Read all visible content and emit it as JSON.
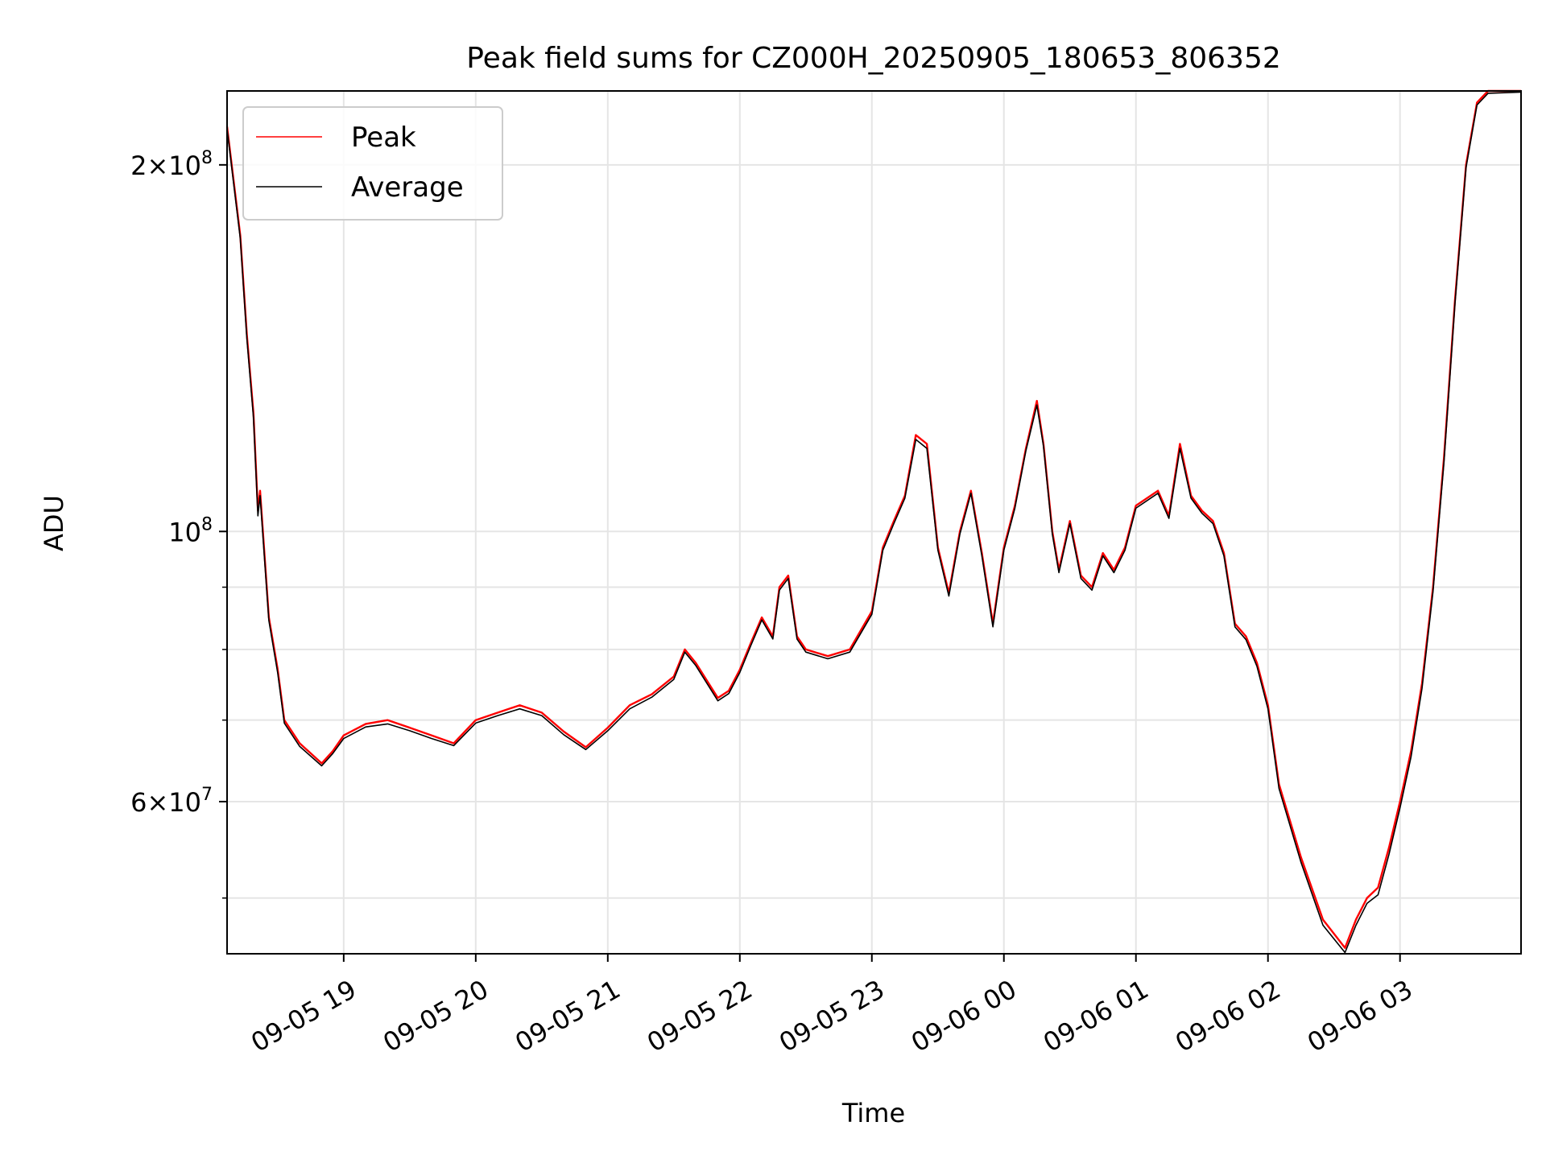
{
  "chart_data": {
    "type": "line",
    "title": "Peak field sums for CZ000H_20250905_180653_806352",
    "xlabel": "Time",
    "ylabel": "ADU",
    "yscale": "log",
    "ylim": [
      45000000,
      230000000
    ],
    "xlim": [
      "2025-09-05 18:07",
      "2025-09-06 03:55"
    ],
    "grid": true,
    "legend_position": "top-left",
    "x_ticks": [
      {
        "t": "2025-09-05 19:00",
        "label": "09-05 19"
      },
      {
        "t": "2025-09-05 20:00",
        "label": "09-05 20"
      },
      {
        "t": "2025-09-05 21:00",
        "label": "09-05 21"
      },
      {
        "t": "2025-09-05 22:00",
        "label": "09-05 22"
      },
      {
        "t": "2025-09-05 23:00",
        "label": "09-05 23"
      },
      {
        "t": "2025-09-06 00:00",
        "label": "09-06 00"
      },
      {
        "t": "2025-09-06 01:00",
        "label": "09-06 01"
      },
      {
        "t": "2025-09-06 02:00",
        "label": "09-06 02"
      },
      {
        "t": "2025-09-06 03:00",
        "label": "09-06 03"
      }
    ],
    "y_ticks_major": [
      {
        "value": 60000000,
        "label_base": "6×10",
        "label_exp": "7"
      },
      {
        "value": 100000000,
        "label_base": "10",
        "label_exp": "8"
      },
      {
        "value": 200000000,
        "label_base": "2×10",
        "label_exp": "8"
      }
    ],
    "y_ticks_minor": [
      50000000,
      70000000,
      80000000,
      90000000
    ],
    "series": [
      {
        "name": "Peak",
        "color": "#ff0000",
        "points": [
          [
            "2025-09-05 18:07",
            215000000
          ],
          [
            "2025-09-05 18:13",
            175000000
          ],
          [
            "2025-09-05 18:16",
            145000000
          ],
          [
            "2025-09-05 18:19",
            125000000
          ],
          [
            "2025-09-05 18:21",
            104000000
          ],
          [
            "2025-09-05 18:22",
            108000000
          ],
          [
            "2025-09-05 18:26",
            85000000
          ],
          [
            "2025-09-05 18:30",
            77000000
          ],
          [
            "2025-09-05 18:33",
            70000000
          ],
          [
            "2025-09-05 18:40",
            67000000
          ],
          [
            "2025-09-05 18:50",
            64500000
          ],
          [
            "2025-09-05 18:55",
            66000000
          ],
          [
            "2025-09-05 19:00",
            68000000
          ],
          [
            "2025-09-05 19:10",
            69500000
          ],
          [
            "2025-09-05 19:20",
            70000000
          ],
          [
            "2025-09-05 19:30",
            69000000
          ],
          [
            "2025-09-05 19:40",
            68000000
          ],
          [
            "2025-09-05 19:50",
            67000000
          ],
          [
            "2025-09-05 20:00",
            70000000
          ],
          [
            "2025-09-05 20:10",
            71000000
          ],
          [
            "2025-09-05 20:20",
            72000000
          ],
          [
            "2025-09-05 20:30",
            71000000
          ],
          [
            "2025-09-05 20:40",
            68500000
          ],
          [
            "2025-09-05 20:50",
            66500000
          ],
          [
            "2025-09-05 21:00",
            69000000
          ],
          [
            "2025-09-05 21:10",
            72000000
          ],
          [
            "2025-09-05 21:20",
            73500000
          ],
          [
            "2025-09-05 21:30",
            76000000
          ],
          [
            "2025-09-05 21:35",
            80000000
          ],
          [
            "2025-09-05 21:40",
            78000000
          ],
          [
            "2025-09-05 21:50",
            73000000
          ],
          [
            "2025-09-05 21:55",
            74000000
          ],
          [
            "2025-09-05 22:00",
            77000000
          ],
          [
            "2025-09-05 22:05",
            81000000
          ],
          [
            "2025-09-05 22:10",
            85000000
          ],
          [
            "2025-09-05 22:15",
            82000000
          ],
          [
            "2025-09-05 22:18",
            90000000
          ],
          [
            "2025-09-05 22:22",
            92000000
          ],
          [
            "2025-09-05 22:26",
            82000000
          ],
          [
            "2025-09-05 22:30",
            80000000
          ],
          [
            "2025-09-05 22:40",
            79000000
          ],
          [
            "2025-09-05 22:50",
            80000000
          ],
          [
            "2025-09-05 23:00",
            86000000
          ],
          [
            "2025-09-05 23:05",
            97000000
          ],
          [
            "2025-09-05 23:10",
            102000000
          ],
          [
            "2025-09-05 23:15",
            107000000
          ],
          [
            "2025-09-05 23:20",
            120000000
          ],
          [
            "2025-09-05 23:25",
            118000000
          ],
          [
            "2025-09-05 23:30",
            97000000
          ],
          [
            "2025-09-05 23:35",
            89000000
          ],
          [
            "2025-09-05 23:40",
            100000000
          ],
          [
            "2025-09-05 23:45",
            108000000
          ],
          [
            "2025-09-05 23:50",
            96000000
          ],
          [
            "2025-09-05 23:55",
            84000000
          ],
          [
            "2025-09-06 00:00",
            97000000
          ],
          [
            "2025-09-06 00:05",
            105000000
          ],
          [
            "2025-09-06 00:10",
            117000000
          ],
          [
            "2025-09-06 00:15",
            128000000
          ],
          [
            "2025-09-06 00:18",
            118000000
          ],
          [
            "2025-09-06 00:22",
            100000000
          ],
          [
            "2025-09-06 00:25",
            93000000
          ],
          [
            "2025-09-06 00:30",
            102000000
          ],
          [
            "2025-09-06 00:35",
            92000000
          ],
          [
            "2025-09-06 00:40",
            90000000
          ],
          [
            "2025-09-06 00:45",
            96000000
          ],
          [
            "2025-09-06 00:50",
            93000000
          ],
          [
            "2025-09-06 00:55",
            97000000
          ],
          [
            "2025-09-06 01:00",
            105000000
          ],
          [
            "2025-09-06 01:10",
            108000000
          ],
          [
            "2025-09-06 01:15",
            103000000
          ],
          [
            "2025-09-06 01:20",
            118000000
          ],
          [
            "2025-09-06 01:25",
            107000000
          ],
          [
            "2025-09-06 01:30",
            104000000
          ],
          [
            "2025-09-06 01:35",
            102000000
          ],
          [
            "2025-09-06 01:40",
            96000000
          ],
          [
            "2025-09-06 01:45",
            84000000
          ],
          [
            "2025-09-06 01:50",
            82000000
          ],
          [
            "2025-09-06 01:55",
            78000000
          ],
          [
            "2025-09-06 02:00",
            72000000
          ],
          [
            "2025-09-06 02:05",
            62000000
          ],
          [
            "2025-09-06 02:15",
            54000000
          ],
          [
            "2025-09-06 02:25",
            48000000
          ],
          [
            "2025-09-06 02:35",
            45500000
          ],
          [
            "2025-09-06 02:40",
            48000000
          ],
          [
            "2025-09-06 02:45",
            50000000
          ],
          [
            "2025-09-06 02:50",
            51000000
          ],
          [
            "2025-09-06 02:55",
            55000000
          ],
          [
            "2025-09-06 03:00",
            60000000
          ],
          [
            "2025-09-06 03:05",
            66000000
          ],
          [
            "2025-09-06 03:10",
            75000000
          ],
          [
            "2025-09-06 03:15",
            90000000
          ],
          [
            "2025-09-06 03:20",
            115000000
          ],
          [
            "2025-09-06 03:25",
            155000000
          ],
          [
            "2025-09-06 03:30",
            200000000
          ],
          [
            "2025-09-06 03:35",
            225000000
          ],
          [
            "2025-09-06 03:40",
            230000000
          ],
          [
            "2025-09-06 03:55",
            230000000
          ]
        ]
      },
      {
        "name": "Average",
        "color": "#000000",
        "points": [
          [
            "2025-09-05 18:07",
            214000000
          ],
          [
            "2025-09-05 18:13",
            174000000
          ],
          [
            "2025-09-05 18:16",
            144000000
          ],
          [
            "2025-09-05 18:19",
            124000000
          ],
          [
            "2025-09-05 18:21",
            103000000
          ],
          [
            "2025-09-05 18:22",
            107000000
          ],
          [
            "2025-09-05 18:26",
            84500000
          ],
          [
            "2025-09-05 18:30",
            76500000
          ],
          [
            "2025-09-05 18:33",
            69600000
          ],
          [
            "2025-09-05 18:40",
            66600000
          ],
          [
            "2025-09-05 18:50",
            64200000
          ],
          [
            "2025-09-05 18:55",
            65700000
          ],
          [
            "2025-09-05 19:00",
            67600000
          ],
          [
            "2025-09-05 19:10",
            69100000
          ],
          [
            "2025-09-05 19:20",
            69500000
          ],
          [
            "2025-09-05 19:30",
            68600000
          ],
          [
            "2025-09-05 19:40",
            67600000
          ],
          [
            "2025-09-05 19:50",
            66700000
          ],
          [
            "2025-09-05 20:00",
            69600000
          ],
          [
            "2025-09-05 20:10",
            70600000
          ],
          [
            "2025-09-05 20:20",
            71500000
          ],
          [
            "2025-09-05 20:30",
            70600000
          ],
          [
            "2025-09-05 20:40",
            68100000
          ],
          [
            "2025-09-05 20:50",
            66200000
          ],
          [
            "2025-09-05 21:00",
            68600000
          ],
          [
            "2025-09-05 21:10",
            71500000
          ],
          [
            "2025-09-05 21:20",
            73100000
          ],
          [
            "2025-09-05 21:30",
            75600000
          ],
          [
            "2025-09-05 21:35",
            79600000
          ],
          [
            "2025-09-05 21:40",
            77600000
          ],
          [
            "2025-09-05 21:50",
            72600000
          ],
          [
            "2025-09-05 21:55",
            73600000
          ],
          [
            "2025-09-05 22:00",
            76600000
          ],
          [
            "2025-09-05 22:05",
            80600000
          ],
          [
            "2025-09-05 22:10",
            84600000
          ],
          [
            "2025-09-05 22:15",
            81600000
          ],
          [
            "2025-09-05 22:18",
            89500000
          ],
          [
            "2025-09-05 22:22",
            91500000
          ],
          [
            "2025-09-05 22:26",
            81600000
          ],
          [
            "2025-09-05 22:30",
            79600000
          ],
          [
            "2025-09-05 22:40",
            78600000
          ],
          [
            "2025-09-05 22:50",
            79600000
          ],
          [
            "2025-09-05 23:00",
            85500000
          ],
          [
            "2025-09-05 23:05",
            96500000
          ],
          [
            "2025-09-05 23:10",
            101500000
          ],
          [
            "2025-09-05 23:15",
            106500000
          ],
          [
            "2025-09-05 23:20",
            119000000
          ],
          [
            "2025-09-05 23:25",
            117000000
          ],
          [
            "2025-09-05 23:30",
            96500000
          ],
          [
            "2025-09-05 23:35",
            88500000
          ],
          [
            "2025-09-05 23:40",
            99500000
          ],
          [
            "2025-09-05 23:45",
            107500000
          ],
          [
            "2025-09-05 23:50",
            95500000
          ],
          [
            "2025-09-05 23:55",
            83500000
          ],
          [
            "2025-09-06 00:00",
            96500000
          ],
          [
            "2025-09-06 00:05",
            104500000
          ],
          [
            "2025-09-06 00:10",
            116500000
          ],
          [
            "2025-09-06 00:15",
            127000000
          ],
          [
            "2025-09-06 00:18",
            117500000
          ],
          [
            "2025-09-06 00:22",
            99500000
          ],
          [
            "2025-09-06 00:25",
            92500000
          ],
          [
            "2025-09-06 00:30",
            101500000
          ],
          [
            "2025-09-06 00:35",
            91500000
          ],
          [
            "2025-09-06 00:40",
            89500000
          ],
          [
            "2025-09-06 00:45",
            95500000
          ],
          [
            "2025-09-06 00:50",
            92500000
          ],
          [
            "2025-09-06 00:55",
            96500000
          ],
          [
            "2025-09-06 01:00",
            104500000
          ],
          [
            "2025-09-06 01:10",
            107500000
          ],
          [
            "2025-09-06 01:15",
            102500000
          ],
          [
            "2025-09-06 01:20",
            117000000
          ],
          [
            "2025-09-06 01:25",
            106500000
          ],
          [
            "2025-09-06 01:30",
            103500000
          ],
          [
            "2025-09-06 01:35",
            101500000
          ],
          [
            "2025-09-06 01:40",
            95500000
          ],
          [
            "2025-09-06 01:45",
            83500000
          ],
          [
            "2025-09-06 01:50",
            81500000
          ],
          [
            "2025-09-06 01:55",
            77500000
          ],
          [
            "2025-09-06 02:00",
            71500000
          ],
          [
            "2025-09-06 02:05",
            61500000
          ],
          [
            "2025-09-06 02:15",
            53500000
          ],
          [
            "2025-09-06 02:25",
            47500000
          ],
          [
            "2025-09-06 02:35",
            45100000
          ],
          [
            "2025-09-06 02:40",
            47500000
          ],
          [
            "2025-09-06 02:45",
            49500000
          ],
          [
            "2025-09-06 02:50",
            50300000
          ],
          [
            "2025-09-06 02:55",
            54300000
          ],
          [
            "2025-09-06 03:00",
            59300000
          ],
          [
            "2025-09-06 03:05",
            65300000
          ],
          [
            "2025-09-06 03:10",
            74300000
          ],
          [
            "2025-09-06 03:15",
            89300000
          ],
          [
            "2025-09-06 03:20",
            114000000
          ],
          [
            "2025-09-06 03:25",
            154000000
          ],
          [
            "2025-09-06 03:30",
            199000000
          ],
          [
            "2025-09-06 03:35",
            224000000
          ],
          [
            "2025-09-06 03:40",
            229000000
          ],
          [
            "2025-09-06 03:55",
            229500000
          ]
        ]
      }
    ]
  }
}
